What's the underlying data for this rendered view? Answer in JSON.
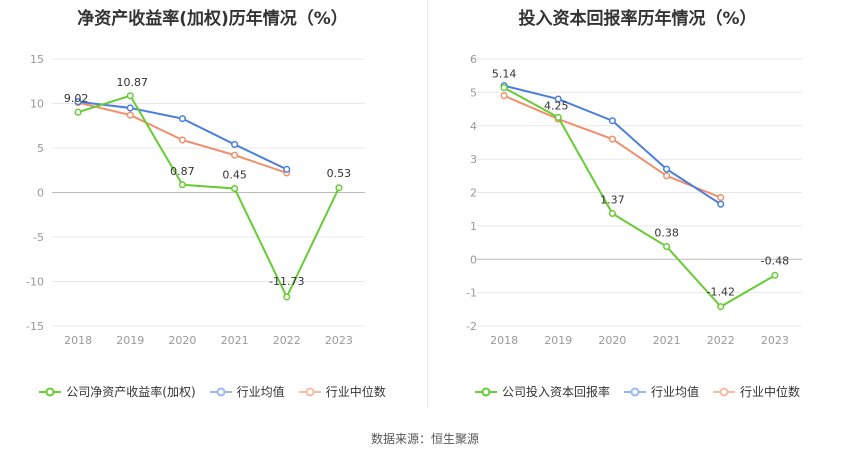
{
  "colors": {
    "company": "#66cc33",
    "industry_avg": "#4a7fdc",
    "industry_median": "#f0906a",
    "grid": "#e8e8e8"
  },
  "source": "数据来源：恒生聚源",
  "chart_data": [
    {
      "type": "line",
      "title": "净资产收益率(加权)历年情况（%）",
      "x": [
        "2018",
        "2019",
        "2020",
        "2021",
        "2022",
        "2023"
      ],
      "ylim": [
        -15,
        15
      ],
      "yticks": [
        15,
        10,
        5,
        0,
        -5,
        -10,
        -15
      ],
      "grid": true,
      "legend": "bottom",
      "series": [
        {
          "name": "公司净资产收益率(加权)",
          "color": "#66cc33",
          "values": [
            9.02,
            10.87,
            0.87,
            0.45,
            -11.73,
            0.53
          ],
          "labels": [
            "9.02",
            "10.87",
            "0.87",
            "0.45",
            "-11.73",
            "0.53"
          ]
        },
        {
          "name": "行业均值",
          "color": "#4a7fdc",
          "values": [
            10.2,
            9.5,
            8.3,
            5.4,
            2.6,
            null
          ],
          "labels": null
        },
        {
          "name": "行业中位数",
          "color": "#f0906a",
          "values": [
            10.1,
            8.7,
            5.9,
            4.2,
            2.2,
            null
          ],
          "labels": null
        }
      ]
    },
    {
      "type": "line",
      "title": "投入资本回报率历年情况（%）",
      "x": [
        "2018",
        "2019",
        "2020",
        "2021",
        "2022",
        "2023"
      ],
      "ylim": [
        -2,
        6
      ],
      "yticks": [
        6,
        5,
        4,
        3,
        2,
        1,
        0,
        -1,
        -2
      ],
      "grid": true,
      "legend": "bottom",
      "series": [
        {
          "name": "公司投入资本回报率",
          "color": "#66cc33",
          "values": [
            5.14,
            4.25,
            1.37,
            0.38,
            -1.42,
            -0.48
          ],
          "labels": [
            "5.14",
            "4.25",
            "1.37",
            "0.38",
            "-1.42",
            "-0.48"
          ]
        },
        {
          "name": "行业均值",
          "color": "#4a7fdc",
          "values": [
            5.2,
            4.8,
            4.15,
            2.7,
            1.65,
            null
          ],
          "labels": null
        },
        {
          "name": "行业中位数",
          "color": "#f0906a",
          "values": [
            4.9,
            4.2,
            3.6,
            2.5,
            1.85,
            null
          ],
          "labels": null
        }
      ]
    }
  ]
}
